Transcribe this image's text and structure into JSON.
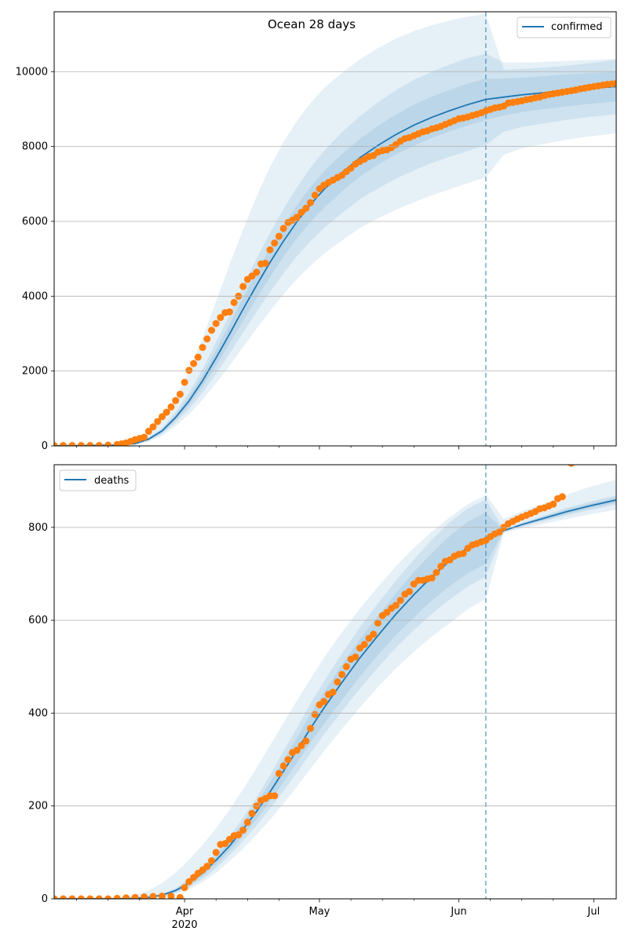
{
  "figure": {
    "title": "Ocean 28 days"
  },
  "colors": {
    "model": "#1f77b4",
    "observed": "#ff7f0e",
    "band": "#1f77b4",
    "grid": "#b0b0b0",
    "axes": "#000000"
  },
  "x_axis": {
    "start_date": "2020-03-03",
    "end_date": "2020-07-06",
    "ticks": [
      {
        "date": "2020-04-01",
        "label": "Apr",
        "sublabel": "2020"
      },
      {
        "date": "2020-05-01",
        "label": "May",
        "sublabel": ""
      },
      {
        "date": "2020-06-01",
        "label": "Jun",
        "sublabel": ""
      },
      {
        "date": "2020-07-01",
        "label": "Jul",
        "sublabel": ""
      }
    ],
    "forecast_start": "2020-06-07"
  },
  "chart_data": [
    {
      "type": "line",
      "title": "Ocean 28 days",
      "legend": {
        "label": "confirmed",
        "placement": "top-right"
      },
      "ylim": [
        0,
        11600
      ],
      "yticks": [
        0,
        2000,
        4000,
        6000,
        8000,
        10000
      ],
      "grid": "y",
      "model_series": {
        "name": "confirmed",
        "x": [
          "2020-03-03",
          "2020-03-10",
          "2020-03-17",
          "2020-03-21",
          "2020-03-24",
          "2020-03-27",
          "2020-03-30",
          "2020-04-02",
          "2020-04-05",
          "2020-04-08",
          "2020-04-11",
          "2020-04-14",
          "2020-04-17",
          "2020-04-20",
          "2020-04-23",
          "2020-04-26",
          "2020-04-29",
          "2020-05-02",
          "2020-05-06",
          "2020-05-10",
          "2020-05-14",
          "2020-05-18",
          "2020-05-22",
          "2020-05-26",
          "2020-05-30",
          "2020-06-03",
          "2020-06-07",
          "2020-06-11",
          "2020-06-15",
          "2020-06-20",
          "2020-06-25",
          "2020-06-30",
          "2020-07-06"
        ],
        "values": [
          5,
          8,
          20,
          60,
          180,
          400,
          760,
          1200,
          1740,
          2350,
          2990,
          3650,
          4290,
          4900,
          5470,
          5990,
          6450,
          6850,
          7300,
          7700,
          8030,
          8320,
          8570,
          8780,
          8960,
          9120,
          9260,
          9320,
          9380,
          9440,
          9500,
          9550,
          9600
        ],
        "bands": [
          {
            "lower": [
              0,
              0,
              5,
              30,
              110,
              270,
              530,
              840,
              1230,
              1670,
              2140,
              2640,
              3130,
              3600,
              4050,
              4460,
              4820,
              5130,
              5490,
              5820,
              6080,
              6310,
              6510,
              6700,
              6860,
              7020,
              7180,
              7780,
              7950,
              8070,
              8180,
              8270,
              8350
            ],
            "upper": [
              15,
              25,
              55,
              140,
              330,
              700,
              1270,
              2000,
              2880,
              3860,
              4840,
              5780,
              6660,
              7450,
              8120,
              8680,
              9160,
              9560,
              9970,
              10330,
              10630,
              10880,
              11080,
              11240,
              11370,
              11470,
              11550,
              10050,
              10070,
              10110,
              10160,
              10220,
              10320
            ]
          },
          {
            "lower": [
              2,
              3,
              10,
              42,
              135,
              320,
              620,
              980,
              1430,
              1930,
              2470,
              3030,
              3580,
              4110,
              4610,
              5070,
              5470,
              5820,
              6220,
              6590,
              6880,
              7140,
              7360,
              7560,
              7730,
              7880,
              8040,
              8400,
              8520,
              8620,
              8710,
              8790,
              8860
            ]
          },
          {
            "lower": [
              3,
              5,
              14,
              50,
              155,
              355,
              690,
              1090,
              1590,
              2140,
              2730,
              3340,
              3940,
              4510,
              5050,
              5550,
              5980,
              6360,
              6800,
              7200,
              7510,
              7790,
              8020,
              8230,
              8410,
              8560,
              8710,
              8830,
              8920,
              9000,
              9070,
              9140,
              9200
            ]
          }
        ]
      },
      "observed_series": {
        "name": "observed confirmed",
        "x": [
          "2020-03-03",
          "2020-03-05",
          "2020-03-07",
          "2020-03-09",
          "2020-03-11",
          "2020-03-13",
          "2020-03-15",
          "2020-03-17",
          "2020-03-18",
          "2020-03-19",
          "2020-03-20",
          "2020-03-21",
          "2020-03-22",
          "2020-03-23",
          "2020-03-24",
          "2020-03-25",
          "2020-03-26",
          "2020-03-27",
          "2020-03-28",
          "2020-03-29",
          "2020-03-30",
          "2020-03-31",
          "2020-04-01",
          "2020-04-02",
          "2020-04-03",
          "2020-04-04",
          "2020-04-05",
          "2020-04-06",
          "2020-04-07",
          "2020-04-08",
          "2020-04-09",
          "2020-04-10",
          "2020-04-11",
          "2020-04-12",
          "2020-04-13",
          "2020-04-14",
          "2020-04-15",
          "2020-04-16",
          "2020-04-17",
          "2020-04-18",
          "2020-04-19",
          "2020-04-20",
          "2020-04-21",
          "2020-04-22",
          "2020-04-23",
          "2020-04-24",
          "2020-04-25",
          "2020-04-26",
          "2020-04-27",
          "2020-04-28",
          "2020-04-29",
          "2020-04-30",
          "2020-05-01",
          "2020-05-02",
          "2020-05-03",
          "2020-05-04",
          "2020-05-05",
          "2020-05-06",
          "2020-05-07",
          "2020-05-08",
          "2020-05-09",
          "2020-05-10",
          "2020-05-11",
          "2020-05-12",
          "2020-05-13",
          "2020-05-14",
          "2020-05-15",
          "2020-05-16",
          "2020-05-17",
          "2020-05-18",
          "2020-05-19",
          "2020-05-20",
          "2020-05-21",
          "2020-05-22",
          "2020-05-23",
          "2020-05-24",
          "2020-05-25",
          "2020-05-26",
          "2020-05-27",
          "2020-05-28",
          "2020-05-29",
          "2020-05-30",
          "2020-05-31",
          "2020-06-01",
          "2020-06-02",
          "2020-06-03",
          "2020-06-04",
          "2020-06-05",
          "2020-06-06",
          "2020-06-07",
          "2020-06-08",
          "2020-06-09",
          "2020-06-10",
          "2020-06-11",
          "2020-06-12",
          "2020-06-13",
          "2020-06-14",
          "2020-06-15",
          "2020-06-16",
          "2020-06-17",
          "2020-06-18",
          "2020-06-19",
          "2020-06-20",
          "2020-06-21",
          "2020-06-22",
          "2020-06-23",
          "2020-06-24",
          "2020-06-25",
          "2020-06-26",
          "2020-06-27",
          "2020-06-28",
          "2020-06-29",
          "2020-06-30",
          "2020-07-01",
          "2020-07-02",
          "2020-07-03",
          "2020-07-04",
          "2020-07-05",
          "2020-07-06"
        ],
        "values": [
          10,
          10,
          10,
          10,
          10,
          10,
          20,
          35,
          55,
          80,
          120,
          165,
          200,
          230,
          390,
          510,
          650,
          780,
          900,
          1040,
          1210,
          1380,
          1700,
          2020,
          2200,
          2370,
          2630,
          2860,
          3090,
          3270,
          3430,
          3560,
          3580,
          3830,
          4000,
          4260,
          4450,
          4540,
          4640,
          4860,
          4880,
          5240,
          5420,
          5600,
          5810,
          5970,
          6030,
          6110,
          6240,
          6350,
          6500,
          6700,
          6870,
          6970,
          7040,
          7100,
          7170,
          7230,
          7330,
          7420,
          7530,
          7600,
          7660,
          7730,
          7760,
          7850,
          7890,
          7910,
          7970,
          8050,
          8140,
          8210,
          8240,
          8290,
          8340,
          8390,
          8420,
          8470,
          8500,
          8540,
          8590,
          8640,
          8690,
          8740,
          8760,
          8790,
          8830,
          8860,
          8900,
          8950,
          8990,
          9030,
          9050,
          9080,
          9160,
          9180,
          9200,
          9220,
          9250,
          9270,
          9300,
          9320,
          9360,
          9390,
          9410,
          9430,
          9450,
          9470,
          9490,
          9510,
          9540,
          9560,
          9580,
          9600,
          9620,
          9640,
          9660,
          9670,
          9690
        ]
      }
    },
    {
      "type": "line",
      "title": "",
      "legend": {
        "label": "deaths",
        "placement": "top-left"
      },
      "ylim": [
        0,
        935
      ],
      "yticks": [
        0,
        200,
        400,
        600,
        800
      ],
      "grid": "y",
      "model_series": {
        "name": "deaths",
        "x": [
          "2020-03-03",
          "2020-03-10",
          "2020-03-17",
          "2020-03-21",
          "2020-03-24",
          "2020-03-27",
          "2020-03-30",
          "2020-04-02",
          "2020-04-05",
          "2020-04-08",
          "2020-04-11",
          "2020-04-14",
          "2020-04-17",
          "2020-04-20",
          "2020-04-23",
          "2020-04-26",
          "2020-04-29",
          "2020-05-02",
          "2020-05-06",
          "2020-05-10",
          "2020-05-14",
          "2020-05-18",
          "2020-05-22",
          "2020-05-26",
          "2020-05-30",
          "2020-06-03",
          "2020-06-07",
          "2020-06-11",
          "2020-06-15",
          "2020-06-20",
          "2020-06-25",
          "2020-06-30",
          "2020-07-06"
        ],
        "values": [
          0,
          0,
          0,
          1,
          3,
          8,
          18,
          34,
          56,
          83,
          114,
          150,
          188,
          230,
          275,
          320,
          367,
          411,
          466,
          519,
          567,
          613,
          655,
          694,
          728,
          757,
          777,
          793,
          806,
          820,
          834,
          846,
          859
        ],
        "bands": [
          {
            "lower": [
              0,
              0,
              0,
              0,
              1,
              4,
              10,
              21,
              36,
              56,
              81,
              108,
              138,
              170,
              205,
              242,
              280,
              318,
              366,
              412,
              456,
              496,
              532,
              565,
              594,
              624,
              646,
              787,
              798,
              808,
              818,
              828,
              838
            ],
            "upper": [
              0,
              1,
              3,
              8,
              18,
              34,
              56,
              84,
              116,
              152,
              192,
              236,
              282,
              330,
              379,
              427,
              474,
              519,
              574,
              625,
              672,
              716,
              756,
              791,
              822,
              850,
              870,
              818,
              835,
              852,
              870,
              887,
              903
            ]
          },
          {
            "lower": [
              0,
              0,
              0,
              1,
              2,
              5,
              13,
              25,
              43,
              66,
              94,
              125,
              158,
              194,
              232,
              272,
              313,
              354,
              404,
              453,
              498,
              541,
              579,
              614,
              645,
              673,
              694,
              791,
              802,
              814,
              826,
              837,
              849
            ]
          },
          {
            "lower": [
              0,
              0,
              0,
              1,
              2,
              6,
              15,
              29,
              49,
              74,
              103,
              136,
              171,
              210,
              251,
              293,
              336,
              377,
              428,
              479,
              525,
              568,
              606,
              643,
              674,
              701,
              722,
              793,
              804,
              816,
              829,
              841,
              853
            ]
          }
        ]
      },
      "observed_series": {
        "name": "observed deaths",
        "x": [
          "2020-03-03",
          "2020-03-05",
          "2020-03-07",
          "2020-03-09",
          "2020-03-11",
          "2020-03-13",
          "2020-03-15",
          "2020-03-17",
          "2020-03-19",
          "2020-03-21",
          "2020-03-23",
          "2020-03-25",
          "2020-03-27",
          "2020-03-29",
          "2020-03-31",
          "2020-04-01",
          "2020-04-02",
          "2020-04-03",
          "2020-04-04",
          "2020-04-05",
          "2020-04-06",
          "2020-04-07",
          "2020-04-08",
          "2020-04-09",
          "2020-04-10",
          "2020-04-11",
          "2020-04-12",
          "2020-04-13",
          "2020-04-14",
          "2020-04-15",
          "2020-04-16",
          "2020-04-17",
          "2020-04-18",
          "2020-04-19",
          "2020-04-20",
          "2020-04-21",
          "2020-04-22",
          "2020-04-23",
          "2020-04-24",
          "2020-04-25",
          "2020-04-26",
          "2020-04-27",
          "2020-04-28",
          "2020-04-29",
          "2020-04-30",
          "2020-05-01",
          "2020-05-02",
          "2020-05-03",
          "2020-05-04",
          "2020-05-05",
          "2020-05-06",
          "2020-05-07",
          "2020-05-08",
          "2020-05-09",
          "2020-05-10",
          "2020-05-11",
          "2020-05-12",
          "2020-05-13",
          "2020-05-14",
          "2020-05-15",
          "2020-05-16",
          "2020-05-17",
          "2020-05-18",
          "2020-05-19",
          "2020-05-20",
          "2020-05-21",
          "2020-05-22",
          "2020-05-23",
          "2020-05-24",
          "2020-05-25",
          "2020-05-26",
          "2020-05-27",
          "2020-05-28",
          "2020-05-29",
          "2020-05-30",
          "2020-05-31",
          "2020-06-01",
          "2020-06-02",
          "2020-06-03",
          "2020-06-04",
          "2020-06-05",
          "2020-06-06",
          "2020-06-07",
          "2020-06-08",
          "2020-06-09",
          "2020-06-10",
          "2020-06-11",
          "2020-06-12",
          "2020-06-13",
          "2020-06-14",
          "2020-06-15",
          "2020-06-16",
          "2020-06-17",
          "2020-06-18",
          "2020-06-19",
          "2020-06-20",
          "2020-06-21",
          "2020-06-22",
          "2020-06-23",
          "2020-06-24",
          "2020-06-26"
        ],
        "values": [
          0,
          0,
          0,
          0,
          0,
          0,
          0,
          1,
          2,
          3,
          4,
          5,
          6,
          6,
          3,
          24,
          37,
          46,
          55,
          62,
          70,
          82,
          100,
          117,
          119,
          128,
          136,
          138,
          148,
          165,
          184,
          200,
          212,
          216,
          222,
          222,
          270,
          286,
          300,
          315,
          320,
          330,
          340,
          367,
          397,
          418,
          425,
          440,
          445,
          467,
          483,
          500,
          516,
          521,
          540,
          548,
          561,
          570,
          594,
          610,
          617,
          626,
          632,
          643,
          656,
          662,
          678,
          686,
          686,
          689,
          691,
          703,
          716,
          727,
          730,
          738,
          742,
          744,
          755,
          762,
          765,
          769,
          772,
          780,
          786,
          790,
          800,
          808,
          813,
          818,
          822,
          826,
          830,
          834,
          840,
          842,
          846,
          850,
          862,
          866,
          938
        ]
      }
    }
  ]
}
